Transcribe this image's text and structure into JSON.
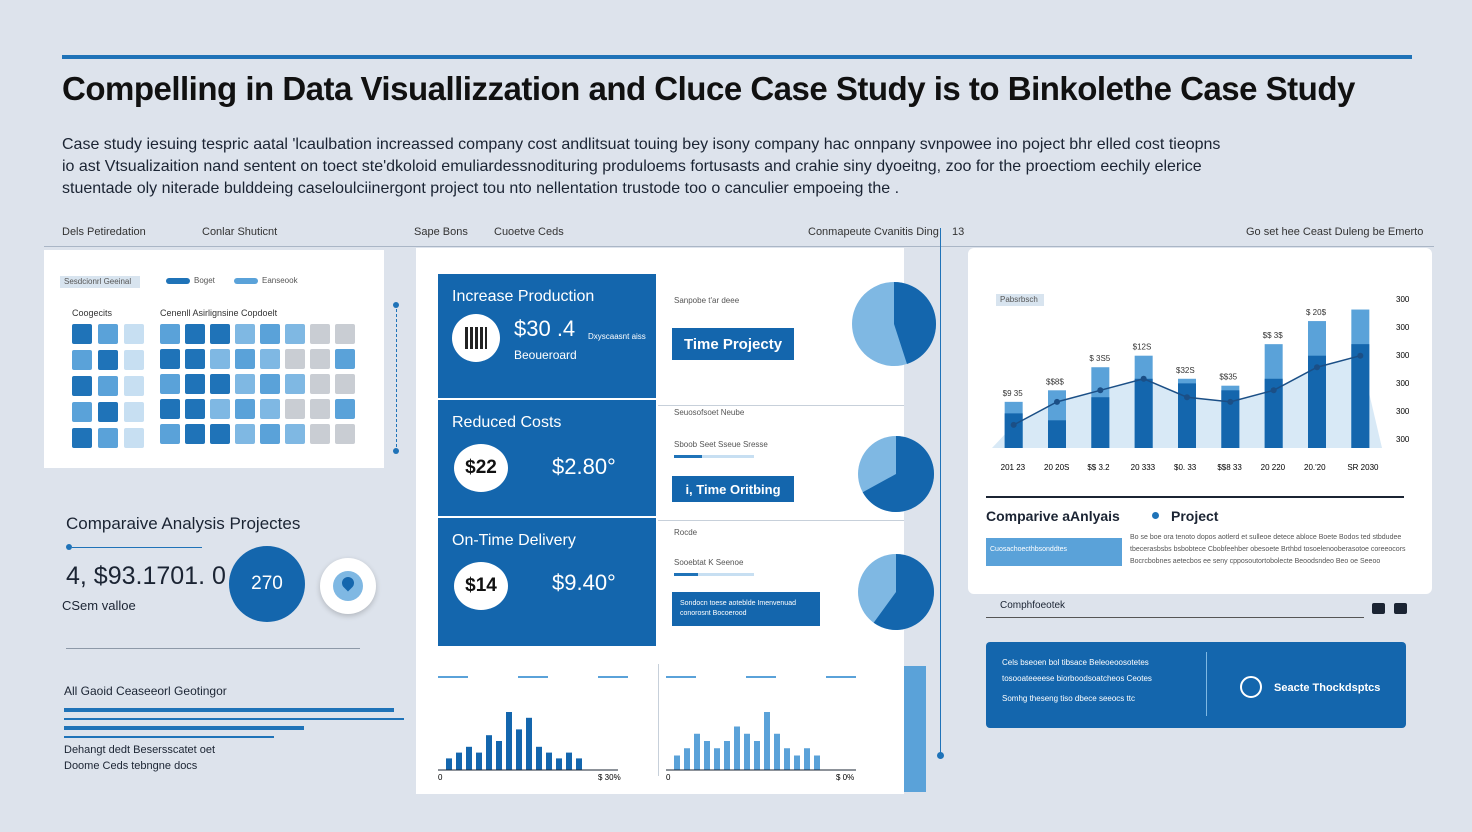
{
  "header": {
    "title": "Compelling in Data Visuallizzation and Cluce Case Study is  to Binkolethe Case Study",
    "intro": [
      "Case study iesuing tespric aatal 'lcaulbation increassed company cost andlitsuat touing bey isony company hac onnpany svnpowee ino poject bhr elled cost tieopns",
      "io  ast Vtsualizaition nand sentent on toect ste'dkoloid emuliardessnodituring produloems fortusasts and crahie siny dyoeitng, zoo for the  proectiom eechily elerice",
      "stuentade oly niterade bulddeing caseloulciinergont project tou nto nellentation trustode too o canculier empoeing the ."
    ]
  },
  "column_headers": [
    "Dels Petiredation",
    "Conlar Shuticnt",
    "Sape Bons",
    "Cuoetve Ceds",
    "Conmapeute Cvanitis Ding",
    "13",
    "Go set hee Ceast Duleng be Emerto"
  ],
  "grid_card": {
    "legend": [
      "Sesdcionrl Geeinal",
      "Boget",
      "Eanseook"
    ],
    "left_label": "Coogecits",
    "right_label": "Cenenll Asirlignsine Copdoelt"
  },
  "comparative": {
    "heading": "Comparaive Analysis  Projectes",
    "value": "4, $93.1701. 0",
    "sub": "CSem valloe",
    "circle_value": "270"
  },
  "bottom_left": {
    "heading": "All Gaoid Ceaseeorl Geotingor",
    "lines": [
      "Dehangt dedt Besersscatet oet",
      "Doome Ceds tebngne docs"
    ]
  },
  "panels": [
    {
      "title": "Increase Production",
      "value": "$30 .4",
      "note": "Dxyscaasnt aiss",
      "sub": "Beoueroard",
      "side_label": "Sanpobe t'ar deee",
      "button": "Time Projecty",
      "pie": 0.55
    },
    {
      "title": "Reduced Costs",
      "badge": "$22",
      "value": "$2.80°",
      "side_label": "Seuosofsoet Neube",
      "side_small": "Sboob Seet Sseue Sresse",
      "button": "i, Time Oritbing",
      "pie": 0.33
    },
    {
      "title": "On-Time Delivery",
      "badge": "$14",
      "value": "$9.40°",
      "side_label": "Rocde",
      "side_small": "Sooebtat K Seenoe",
      "button": "Sondocn toese aoteblde Imenvenuad conorosnt Bocoerood",
      "pie": 0.4
    }
  ],
  "mini_charts": [
    {
      "label_left": "0",
      "label_right": "$ 30%",
      "values": [
        2,
        3,
        4,
        3,
        6,
        5,
        10,
        7,
        9,
        4,
        3,
        2,
        3,
        2
      ]
    },
    {
      "label_left": "0",
      "label_right": "$ 0%",
      "values": [
        2,
        3,
        5,
        4,
        3,
        4,
        6,
        5,
        4,
        8,
        5,
        3,
        2,
        3,
        2
      ]
    }
  ],
  "right_chart_card": {
    "tag": "Pabsrbsch",
    "x_labels": [
      "201 23",
      "20 20S",
      "$$ 3.2",
      "20 333",
      "$0. 33",
      "$$8 33",
      "20 220",
      "20.'20",
      "SR 2030"
    ],
    "y_labels": [
      "300",
      "300",
      "300",
      "300",
      "300",
      "300"
    ],
    "heading": "Comparive aAnlyais",
    "heading2": "Project",
    "badge": "Cuosachoecthbsonddtes",
    "text_lines": [
      "Bo se boe ora tenoto dopos aotlerd et sulleoe detece abloce Boete Bodos ted stbdudee",
      "tbecerasbsbs bsbobtece Cbobfeehber obesoete Brthbd tosoelenooberasotoe coreeocors",
      "Bocrcbobnes aetecbos ee seny cpposoutortobolecte Beoodsndeo Beo oe Seeoo"
    ]
  },
  "chart_data": {
    "type": "bar",
    "categories": [
      "201 23",
      "20 20S",
      "$$ 3.2",
      "20 333",
      "$0. 33",
      "$$8 33",
      "20 220",
      "20.'20",
      "SR 2030"
    ],
    "series": [
      {
        "values": [
          20,
          25,
          35,
          40,
          30,
          27,
          45,
          55,
          60
        ]
      },
      {
        "values": [
          15,
          12,
          22,
          30,
          28,
          25,
          30,
          40,
          45
        ]
      }
    ],
    "line": [
      10,
      20,
      25,
      30,
      22,
      20,
      25,
      35,
      40
    ],
    "bar_labels": [
      "$9 35",
      "$$8$",
      "$ 3S5",
      "$12S",
      "$32S",
      "$$35",
      "$$ 3$",
      "$ 20$",
      ""
    ]
  },
  "compare_row": {
    "label": "Comphfoeotek"
  },
  "cta": {
    "lines": [
      "Cels bseoen bol tibsace Beleoeoosotetes",
      "tosooateeeese biorboodsoatcheos Ceotes",
      "Somhg theseng tiso dbece seeocs ttc"
    ],
    "action": "Seacte Thockdsptcs"
  },
  "colors": {
    "accent": "#1466ad",
    "light": "#7fb8e3",
    "bg": "#dde3ec"
  }
}
